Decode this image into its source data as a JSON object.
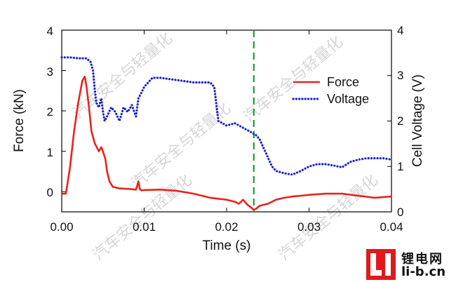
{
  "chart_data": {
    "type": "line",
    "xlabel": "Time (s)",
    "ylabel_left": "Force (kN)",
    "ylabel_right": "Cell Voltage (V)",
    "xlim": [
      0,
      0.04
    ],
    "ylim_left": [
      -0.5,
      4
    ],
    "ylim_right": [
      0,
      4
    ],
    "x_ticks": [
      0.0,
      0.01,
      0.02,
      0.03,
      0.04
    ],
    "x_tick_labels": [
      "0.00",
      "0.01",
      "0.02",
      "0.03",
      "0.04"
    ],
    "y_left_ticks": [
      0,
      1,
      2,
      3,
      4
    ],
    "y_left_tick_labels": [
      "0",
      "1",
      "2",
      "3",
      "4"
    ],
    "y_right_ticks": [
      0,
      1,
      2,
      3,
      4
    ],
    "y_right_tick_labels": [
      "0",
      "1",
      "2",
      "3",
      "4"
    ],
    "vline": {
      "x": 0.0233,
      "color": "#1f9a3a",
      "style": "dashed"
    },
    "legend_position": "top-right",
    "series": [
      {
        "name": "Force",
        "axis": "left",
        "color": "#e8231f",
        "style": "solid",
        "x": [
          0.0,
          0.0005,
          0.001,
          0.0015,
          0.002,
          0.0025,
          0.0028,
          0.003,
          0.0033,
          0.0036,
          0.004,
          0.0045,
          0.0048,
          0.005,
          0.0053,
          0.0055,
          0.0058,
          0.0062,
          0.0066,
          0.007,
          0.008,
          0.009,
          0.0093,
          0.0095,
          0.0097,
          0.01,
          0.012,
          0.014,
          0.016,
          0.018,
          0.02,
          0.021,
          0.0215,
          0.022,
          0.0225,
          0.023,
          0.0233,
          0.0236,
          0.024,
          0.025,
          0.026,
          0.027,
          0.028,
          0.029,
          0.03,
          0.032,
          0.034,
          0.036,
          0.038,
          0.04
        ],
        "values": [
          -0.05,
          -0.05,
          0.6,
          1.5,
          2.2,
          2.75,
          2.85,
          2.6,
          2.1,
          1.5,
          1.2,
          1.0,
          1.1,
          1.0,
          0.8,
          0.5,
          0.25,
          0.12,
          0.1,
          0.08,
          0.07,
          0.05,
          0.25,
          0.05,
          0.03,
          0.04,
          0.05,
          0.02,
          -0.05,
          -0.15,
          -0.2,
          -0.25,
          -0.3,
          -0.2,
          -0.32,
          -0.4,
          -0.45,
          -0.42,
          -0.35,
          -0.3,
          -0.2,
          -0.15,
          -0.12,
          -0.1,
          -0.08,
          -0.05,
          -0.05,
          -0.1,
          -0.15,
          -0.12
        ]
      },
      {
        "name": "Voltage",
        "axis": "right",
        "color": "#1a22c8",
        "style": "dotted",
        "x": [
          0.0,
          0.001,
          0.002,
          0.003,
          0.0035,
          0.0038,
          0.004,
          0.0042,
          0.0045,
          0.0048,
          0.005,
          0.0052,
          0.0055,
          0.006,
          0.0065,
          0.007,
          0.0075,
          0.008,
          0.0085,
          0.009,
          0.0093,
          0.0096,
          0.01,
          0.0105,
          0.011,
          0.012,
          0.014,
          0.016,
          0.018,
          0.0185,
          0.019,
          0.02,
          0.021,
          0.022,
          0.0225,
          0.023,
          0.0235,
          0.024,
          0.0245,
          0.025,
          0.0255,
          0.026,
          0.027,
          0.028,
          0.029,
          0.03,
          0.031,
          0.032,
          0.033,
          0.034,
          0.035,
          0.036,
          0.037,
          0.038,
          0.039,
          0.04
        ],
        "values": [
          3.4,
          3.4,
          3.38,
          3.38,
          3.3,
          3.1,
          2.7,
          2.4,
          2.3,
          2.5,
          2.2,
          2.0,
          2.1,
          2.3,
          2.2,
          2.0,
          2.3,
          2.2,
          2.35,
          2.1,
          2.5,
          2.6,
          2.75,
          2.85,
          2.95,
          2.95,
          2.9,
          2.85,
          2.85,
          2.75,
          2.0,
          1.9,
          1.95,
          1.85,
          1.8,
          1.75,
          1.7,
          1.6,
          1.4,
          1.2,
          1.0,
          0.9,
          0.85,
          0.82,
          0.9,
          1.0,
          1.05,
          1.05,
          1.02,
          0.98,
          1.1,
          1.15,
          1.18,
          1.18,
          1.18,
          1.15
        ]
      }
    ]
  },
  "watermarks": [
    "汽车安全与轻量化",
    "汽车安全与轻量化",
    "汽车安全与轻量化",
    "汽车安全与轻量化",
    "汽车安全与轻量化"
  ],
  "logo": {
    "line1": "锂电网",
    "line2": "li-b.cn"
  }
}
